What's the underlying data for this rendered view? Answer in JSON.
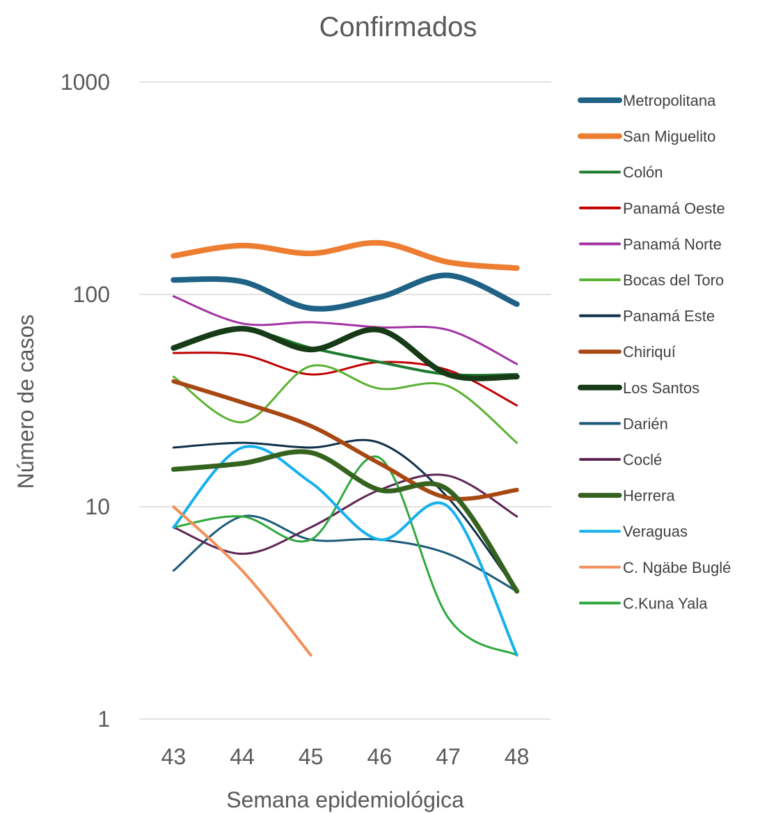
{
  "chart_data": {
    "type": "line",
    "title": "Confirmados",
    "xlabel": "Semana epidemiológica",
    "ylabel": "Número de casos",
    "y_scale": "log",
    "ylim": [
      1,
      1000
    ],
    "y_ticks": [
      "1",
      "10",
      "100",
      "1000"
    ],
    "x": [
      "43",
      "44",
      "45",
      "46",
      "47",
      "48"
    ],
    "grid": "horizontal",
    "legend_position": "right",
    "series": [
      {
        "name": "Metropolitana",
        "color": "#1f6286",
        "width": 8,
        "values": [
          117,
          115,
          86,
          97,
          123,
          90
        ]
      },
      {
        "name": "San Miguelito",
        "color": "#ed7d31",
        "width": 8,
        "values": [
          152,
          170,
          156,
          175,
          142,
          133
        ]
      },
      {
        "name": "Colón",
        "color": "#1e7a2e",
        "width": 4,
        "values": [
          55,
          68,
          56,
          48,
          42,
          42
        ]
      },
      {
        "name": "Panamá Oeste",
        "color": "#c00000",
        "width": 3,
        "values": [
          53,
          52,
          42,
          48,
          44,
          30
        ]
      },
      {
        "name": "Panamá Norte",
        "color": "#a233a3",
        "width": 3,
        "values": [
          98,
          73,
          74,
          70,
          68,
          47
        ]
      },
      {
        "name": "Bocas del Toro",
        "color": "#5bb132",
        "width": 3,
        "values": [
          41,
          25,
          46,
          36,
          37,
          20
        ]
      },
      {
        "name": "Panamá Este",
        "color": "#0f2f4a",
        "width": 3,
        "values": [
          19,
          20,
          19,
          20,
          11,
          4
        ]
      },
      {
        "name": "Chiriquí",
        "color": "#a74712",
        "width": 6,
        "values": [
          39,
          31,
          24,
          16,
          11,
          12
        ]
      },
      {
        "name": "Los Santos",
        "color": "#173b17",
        "width": 8,
        "values": [
          56,
          69,
          55,
          68,
          42,
          41
        ]
      },
      {
        "name": "Darién",
        "color": "#1b5a78",
        "width": 3,
        "values": [
          5,
          9,
          7,
          7,
          6,
          4
        ]
      },
      {
        "name": "Coclé",
        "color": "#5e2553",
        "width": 3,
        "values": [
          8,
          6,
          8,
          12,
          14,
          9
        ]
      },
      {
        "name": "Herrera",
        "color": "#35631f",
        "width": 7,
        "values": [
          15,
          16,
          18,
          12,
          12,
          4
        ]
      },
      {
        "name": "Veraguas",
        "color": "#17b0ee",
        "width": 4,
        "values": [
          8,
          19,
          13,
          7,
          10,
          2
        ]
      },
      {
        "name": "C. Ngäbe Buglé",
        "color": "#f0905a",
        "width": 4,
        "values": [
          10,
          5,
          2,
          null,
          null,
          null
        ]
      },
      {
        "name": "C.Kuna Yala",
        "color": "#30a83c",
        "width": 3,
        "values": [
          8,
          9,
          7,
          17,
          3,
          2
        ]
      }
    ]
  }
}
